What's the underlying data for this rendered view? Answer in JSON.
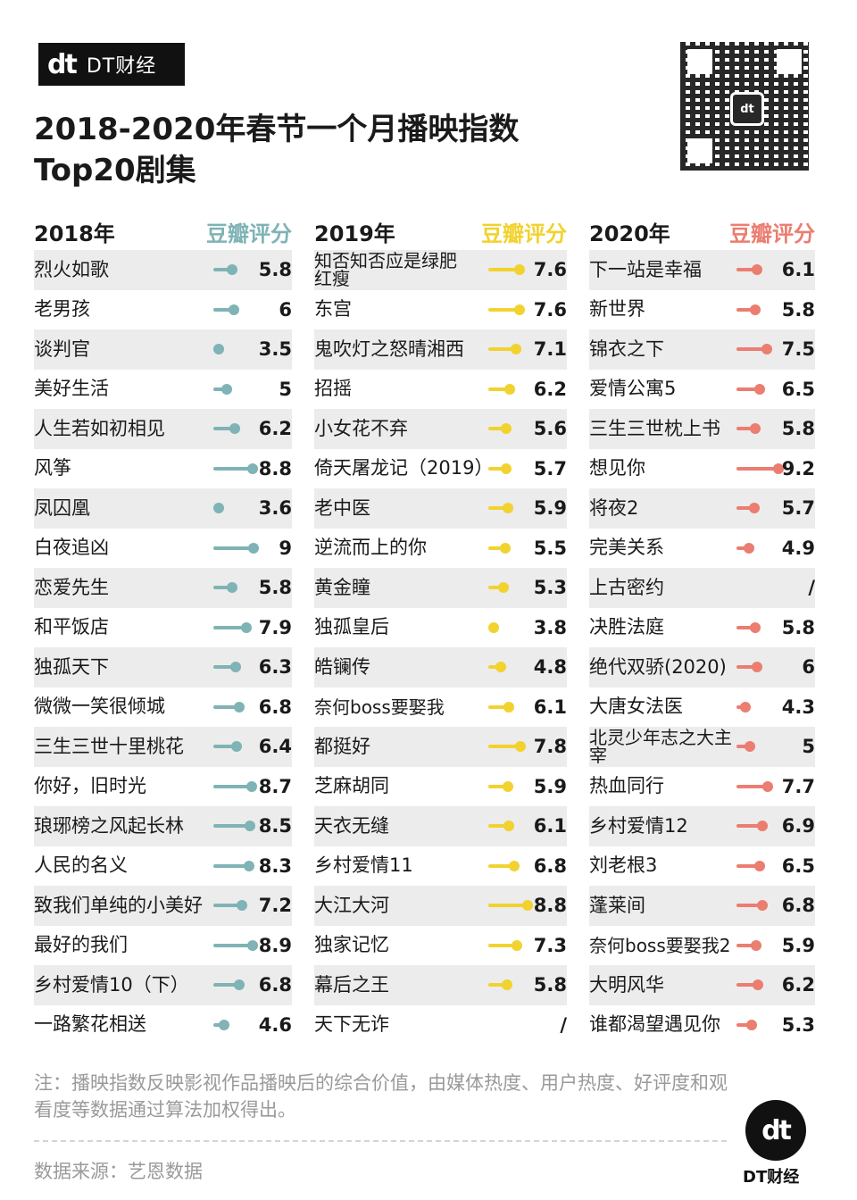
{
  "brand": {
    "mark": "dt",
    "text": "DT财经"
  },
  "title_lines": [
    "2018-2020年春节一个月播映指数",
    "Top20剧集"
  ],
  "qr": {
    "logo": "dt"
  },
  "rating_label": "豆瓣评分",
  "note": "注：播映指数反映影视作品播映后的综合价值，由媒体热度、用户热度、好评度和观看度等数据通过算法加权得出。",
  "source": "数据来源：艺恩数据",
  "footer": {
    "mark": "dt",
    "label": "DT财经"
  },
  "colors": {
    "2018": "#7fb3b5",
    "2019": "#f2d22e",
    "2020": "#eb7d71",
    "text": "#1a1a1a",
    "muted": "#9a9a9a"
  },
  "chart_data": [
    {
      "type": "bar",
      "title": "2018年",
      "ylabel": "豆瓣评分",
      "color": "#7fb3b5",
      "ylim": [
        0,
        10
      ],
      "categories": [
        "烈火如歌",
        "老男孩",
        "谈判官",
        "美好生活",
        "人生若如初相见",
        "风筝",
        "凤囚凰",
        "白夜追凶",
        "恋爱先生",
        "和平饭店",
        "独孤天下",
        "微微一笑很倾城",
        "三生三世十里桃花",
        "你好，旧时光",
        "琅琊榜之风起长林",
        "人民的名义",
        "致我们单纯的小美好",
        "最好的我们",
        "乡村爱情10（下）",
        "一路繁花相送"
      ],
      "values": [
        5.8,
        6,
        3.5,
        5,
        6.2,
        8.8,
        3.6,
        9,
        5.8,
        7.9,
        6.3,
        6.8,
        6.4,
        8.7,
        8.5,
        8.3,
        7.2,
        8.9,
        6.8,
        4.6
      ],
      "labels": [
        "5.8",
        "6",
        "3.5",
        "5",
        "6.2",
        "8.8",
        "3.6",
        "9",
        "5.8",
        "7.9",
        "6.3",
        "6.8",
        "6.4",
        "8.7",
        "8.5",
        "8.3",
        "7.2",
        "8.9",
        "6.8",
        "4.6"
      ]
    },
    {
      "type": "bar",
      "title": "2019年",
      "ylabel": "豆瓣评分",
      "color": "#f2d22e",
      "ylim": [
        0,
        10
      ],
      "categories": [
        "知否知否应是绿肥红瘦",
        "东宫",
        "鬼吹灯之怒晴湘西",
        "招摇",
        "小女花不弃",
        "倚天屠龙记（2019）",
        "老中医",
        "逆流而上的你",
        "黄金瞳",
        "独孤皇后",
        "皓镧传",
        "奈何boss要娶我",
        "都挺好",
        "芝麻胡同",
        "天衣无缝",
        "乡村爱情11",
        "大江大河",
        "独家记忆",
        "幕后之王",
        "天下无诈"
      ],
      "values": [
        7.6,
        7.6,
        7.1,
        6.2,
        5.6,
        5.7,
        5.9,
        5.5,
        5.3,
        3.8,
        4.8,
        6.1,
        7.8,
        5.9,
        6.1,
        6.8,
        8.8,
        7.3,
        5.8,
        null
      ],
      "labels": [
        "7.6",
        "7.6",
        "7.1",
        "6.2",
        "5.6",
        "5.7",
        "5.9",
        "5.5",
        "5.3",
        "3.8",
        "4.8",
        "6.1",
        "7.8",
        "5.9",
        "6.1",
        "6.8",
        "8.8",
        "7.3",
        "5.8",
        "/"
      ]
    },
    {
      "type": "bar",
      "title": "2020年",
      "ylabel": "豆瓣评分",
      "color": "#eb7d71",
      "ylim": [
        0,
        10
      ],
      "categories": [
        "下一站是幸福",
        "新世界",
        "锦衣之下",
        "爱情公寓5",
        "三生三世枕上书",
        "想见你",
        "将夜2",
        "完美关系",
        "上古密约",
        "决胜法庭",
        "绝代双骄(2020)",
        "大唐女法医",
        "北灵少年志之大主宰",
        "热血同行",
        "乡村爱情12",
        "刘老根3",
        "蓬莱间",
        "奈何boss要娶我2",
        "大明风华",
        "谁都渴望遇见你"
      ],
      "values": [
        6.1,
        5.8,
        7.5,
        6.5,
        5.8,
        9.2,
        5.7,
        4.9,
        null,
        5.8,
        6,
        4.3,
        5,
        7.7,
        6.9,
        6.5,
        6.8,
        5.9,
        6.2,
        5.3
      ],
      "labels": [
        "6.1",
        "5.8",
        "7.5",
        "6.5",
        "5.8",
        "9.2",
        "5.7",
        "4.9",
        "/",
        "5.8",
        "6",
        "4.3",
        "5",
        "7.7",
        "6.9",
        "6.5",
        "6.8",
        "5.9",
        "6.2",
        "5.3"
      ]
    }
  ]
}
